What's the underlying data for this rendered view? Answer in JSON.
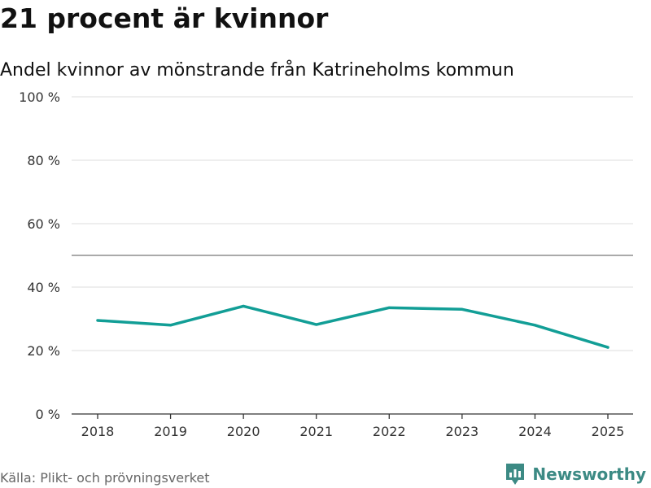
{
  "title": "21 procent är kvinnor",
  "subtitle": "Andel kvinnor av mönstrande från Katrineholms kommun",
  "source": "Källa: Plikt- och prövningsverket",
  "brand": {
    "name": "Newsworthy",
    "icon": "newsworthy-logo-icon",
    "color": "#3c8a84"
  },
  "colors": {
    "line": "#129e96",
    "grid": "#dddddd",
    "reference": "#777777",
    "axis": "#333333"
  },
  "chart_data": {
    "type": "line",
    "title": "21 procent är kvinnor",
    "subtitle": "Andel kvinnor av mönstrande från Katrineholms kommun",
    "xlabel": "",
    "ylabel": "",
    "categories": [
      "2018",
      "2019",
      "2020",
      "2021",
      "2022",
      "2023",
      "2024",
      "2025"
    ],
    "series": [
      {
        "name": "Andel kvinnor",
        "values": [
          29.5,
          28,
          34,
          28.2,
          33.5,
          33,
          28,
          21
        ]
      }
    ],
    "ylim": [
      0,
      100
    ],
    "yticks": [
      0,
      20,
      40,
      60,
      80,
      100
    ],
    "ytick_labels": [
      "0 %",
      "20 %",
      "40 %",
      "60 %",
      "80 %",
      "100 %"
    ],
    "reference_line": 50,
    "grid": true,
    "legend": "none"
  }
}
